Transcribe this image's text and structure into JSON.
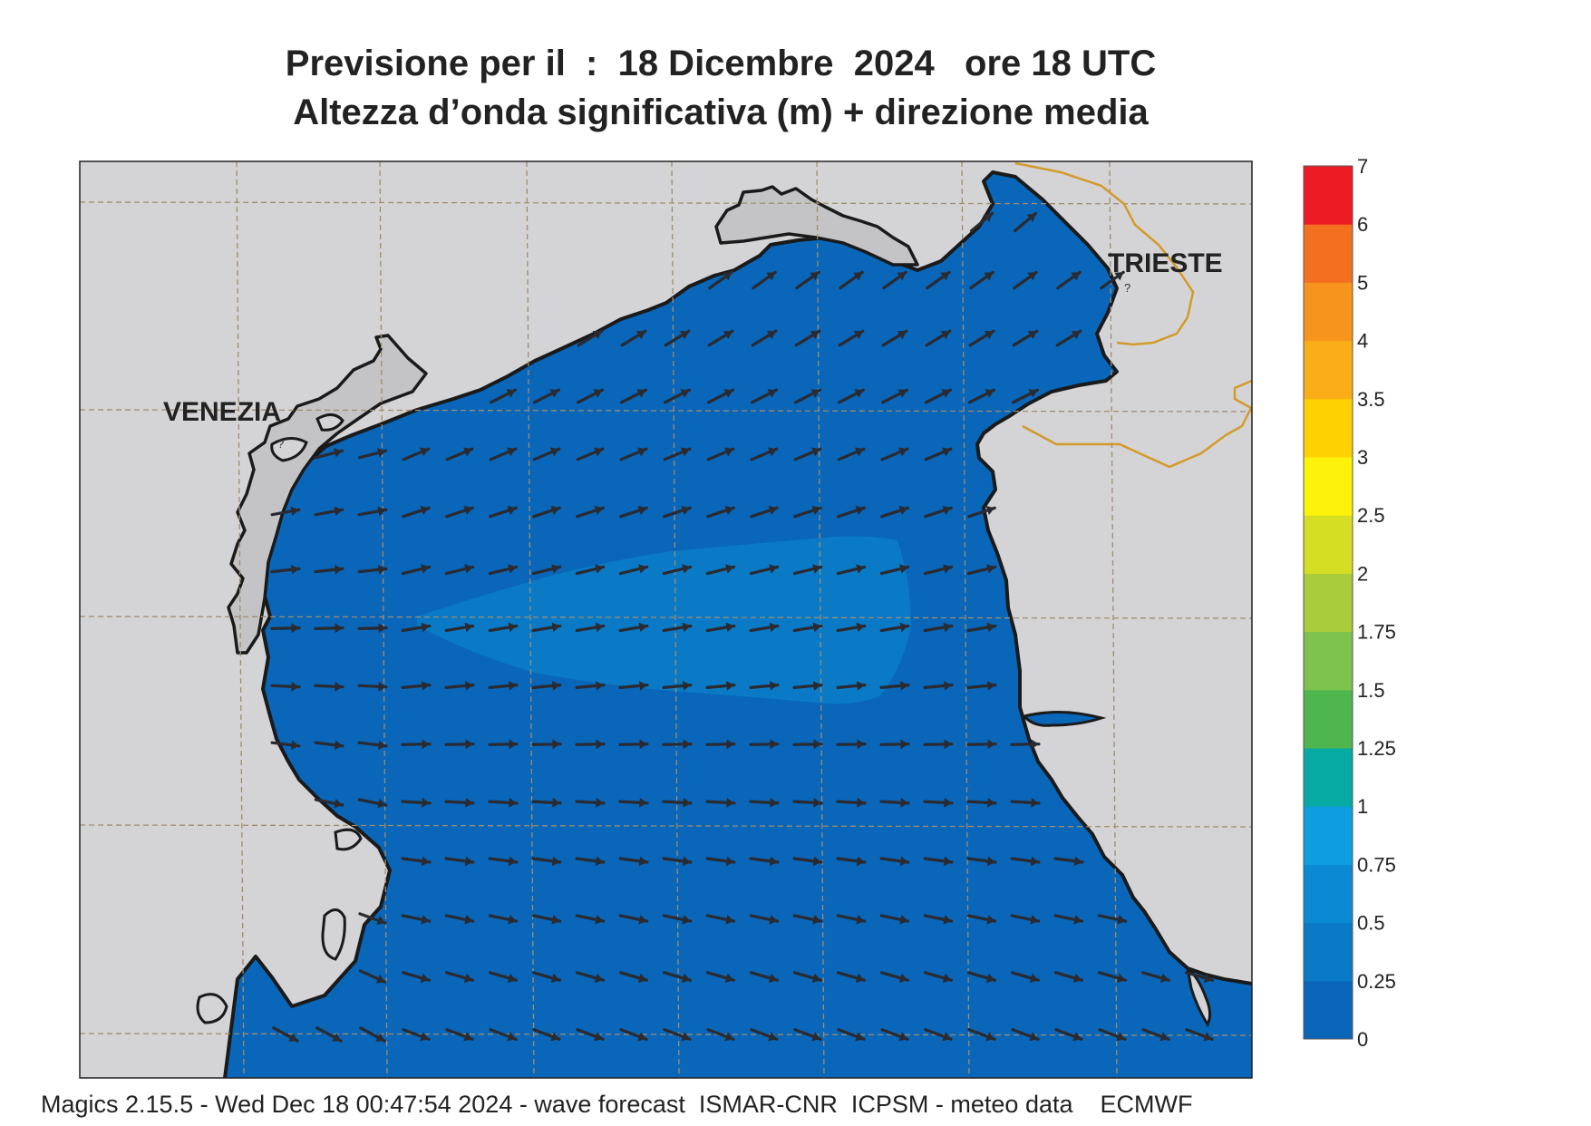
{
  "header": {
    "title_line1": "Previsione per il  :  18 Dicembre  2024   ore 18 UTC",
    "title_line2": "Altezza d’onda significativa (m) + direzione media"
  },
  "map": {
    "cities": [
      {
        "name": "VENEZIA"
      },
      {
        "name": "TRIESTE"
      }
    ],
    "colors": {
      "land": "#d4d4d6",
      "sea_0_025": "#0966b8",
      "sea_025_05": "#0a7ac6",
      "coastline": "#1a1a1a",
      "border": "#d39a2a",
      "grid": "#a08c6e",
      "arrow": "#2a2a30"
    },
    "wave_field": {
      "max_height_band": "0.25 - 0.5",
      "mean_direction": "from west-northwest toward east-southeast in the south, toward northeast in the north"
    }
  },
  "colorbar": {
    "levels": [
      "0",
      "0.25",
      "0.5",
      "0.75",
      "1",
      "1.25",
      "1.5",
      "1.75",
      "2",
      "2.5",
      "3",
      "3.5",
      "4",
      "5",
      "6",
      "7"
    ],
    "colors": [
      "#0966b8",
      "#0a7ac6",
      "#0b8ad3",
      "#0e9ddf",
      "#07a9a3",
      "#4fb54f",
      "#7ec24e",
      "#a9cc3c",
      "#d6de24",
      "#fcf20a",
      "#fed202",
      "#fbad18",
      "#f7941d",
      "#f37021",
      "#ed1c24",
      "#ec1268"
    ]
  },
  "footer": {
    "text": "Magics 2.15.5 - Wed Dec 18 00:47:54 2024 - wave forecast  ISMAR-CNR  ICPSM - meteo data    ECMWF"
  }
}
